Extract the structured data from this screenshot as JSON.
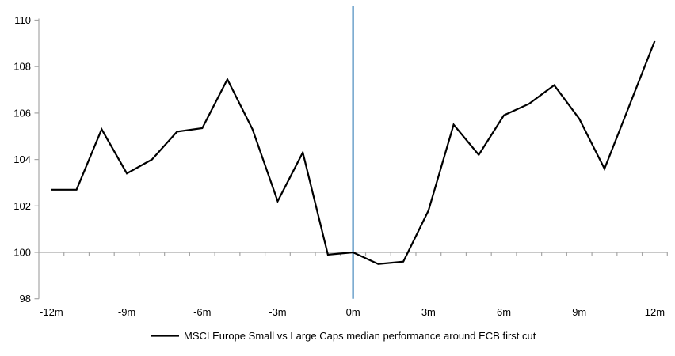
{
  "chart_data": {
    "type": "line",
    "title": "",
    "legend_label": "MSCI Europe Small vs Large Caps median performance around ECB first cut",
    "xlabel": "",
    "ylabel": "",
    "x_months": [
      -12,
      -11,
      -10,
      -9,
      -8,
      -7,
      -6,
      -5,
      -4,
      -3,
      -2,
      -1,
      0,
      1,
      2,
      3,
      4,
      5,
      6,
      7,
      8,
      9,
      10,
      11,
      12
    ],
    "series": [
      {
        "name": "MSCI Europe Small vs Large Caps median performance around ECB first cut",
        "color": "#000000",
        "values": [
          102.7,
          102.7,
          105.3,
          103.4,
          104.0,
          105.2,
          105.35,
          107.45,
          105.3,
          102.2,
          104.3,
          99.9,
          100.0,
          99.5,
          99.6,
          101.8,
          105.5,
          104.2,
          105.9,
          106.4,
          107.2,
          105.75,
          103.6,
          106.35,
          109.1
        ]
      }
    ],
    "x_ticks": [
      {
        "month": -12,
        "label": "-12m"
      },
      {
        "month": -9,
        "label": "-9m"
      },
      {
        "month": -6,
        "label": "-6m"
      },
      {
        "month": -3,
        "label": "-3m"
      },
      {
        "month": 0,
        "label": "0m"
      },
      {
        "month": 3,
        "label": "3m"
      },
      {
        "month": 6,
        "label": "6m"
      },
      {
        "month": 9,
        "label": "9m"
      },
      {
        "month": 12,
        "label": "12m"
      }
    ],
    "y_ticks": [
      "98",
      "100",
      "102",
      "104",
      "106",
      "108",
      "110"
    ],
    "ylim": [
      98,
      110
    ],
    "xlim_months": [
      -12.5,
      12.5
    ],
    "baseline_value": 100,
    "event_line_month": 0,
    "grid": "baseline-only",
    "legend_position": "bottom-center",
    "colors": {
      "series_line": "#000000",
      "event_line": "#6fa3cc",
      "axis": "#a6a6a6",
      "baseline": "#a6a6a6",
      "label_text": "#000000"
    }
  }
}
